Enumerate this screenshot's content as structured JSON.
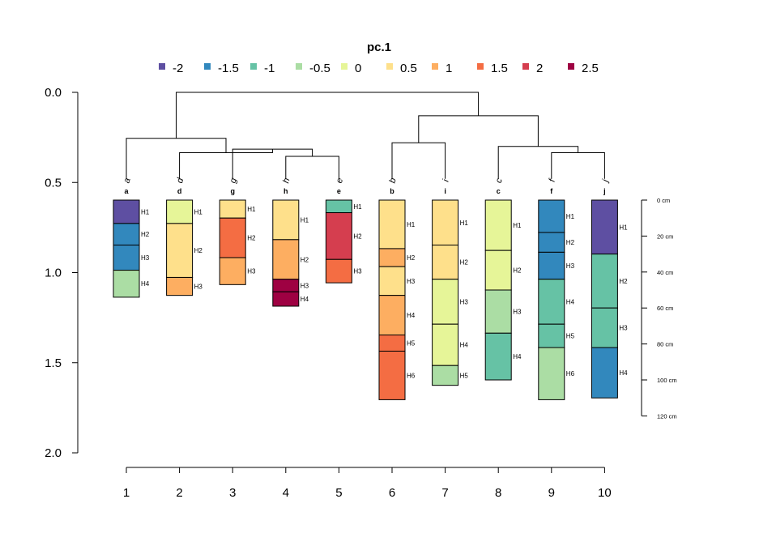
{
  "chart_data": {
    "type": "soil-profile-dendrogram",
    "legend": {
      "title": "pc.1",
      "entries": [
        {
          "label": "-2",
          "color": "#5e4fa2"
        },
        {
          "label": "-1.5",
          "color": "#3288bd"
        },
        {
          "label": "-1",
          "color": "#66c2a5"
        },
        {
          "label": "-0.5",
          "color": "#abdda4"
        },
        {
          "label": "0",
          "color": "#e6f598"
        },
        {
          "label": "0.5",
          "color": "#fee08b"
        },
        {
          "label": "1",
          "color": "#fdae61"
        },
        {
          "label": "1.5",
          "color": "#f46d43"
        },
        {
          "label": "2",
          "color": "#d53e4f"
        },
        {
          "label": "2.5",
          "color": "#9e0142"
        }
      ]
    },
    "y_axis": {
      "ticks": [
        "0.0",
        "0.5",
        "1.0",
        "1.5",
        "2.0"
      ],
      "values": [
        0,
        0.5,
        1.0,
        1.5,
        2.0
      ],
      "range": [
        0,
        2.0
      ]
    },
    "x_axis": {
      "ticks": [
        "1",
        "2",
        "3",
        "4",
        "5",
        "6",
        "7",
        "8",
        "9",
        "10"
      ]
    },
    "depth_scale": {
      "labels": [
        "0 cm",
        "20 cm",
        "40 cm",
        "60 cm",
        "80 cm",
        "100 cm",
        "120 cm"
      ],
      "values": [
        0,
        20,
        40,
        60,
        80,
        100,
        120
      ]
    },
    "dendrogram": {
      "leaf_order": [
        "a",
        "d",
        "g",
        "h",
        "e",
        "b",
        "i",
        "c",
        "f",
        "j"
      ],
      "merges": [
        {
          "left": 4,
          "right": 5,
          "height": 0.355
        },
        {
          "left": 3,
          "right": 11,
          "height": 0.315
        },
        {
          "left": 2,
          "right": 12,
          "height": 0.335
        },
        {
          "left": 1,
          "right": 13,
          "height": 0.255
        },
        {
          "left": 6,
          "right": 7,
          "height": 0.28
        },
        {
          "left": 9,
          "right": 10,
          "height": 0.335
        },
        {
          "left": 8,
          "right": 16,
          "height": 0.3
        },
        {
          "left": 15,
          "right": 17,
          "height": 0.13
        },
        {
          "left": 14,
          "right": 18,
          "height": 0.0
        }
      ]
    },
    "profiles": [
      {
        "id": "a",
        "horizons": [
          {
            "name": "H1",
            "top": 0,
            "bottom": 13,
            "value": -2
          },
          {
            "name": "H2",
            "top": 13,
            "bottom": 25,
            "value": -1.5
          },
          {
            "name": "H3",
            "top": 25,
            "bottom": 39,
            "value": -1.5
          },
          {
            "name": "H4",
            "top": 39,
            "bottom": 54,
            "value": -0.5
          }
        ]
      },
      {
        "id": "d",
        "horizons": [
          {
            "name": "H1",
            "top": 0,
            "bottom": 13,
            "value": 0
          },
          {
            "name": "H2",
            "top": 13,
            "bottom": 43,
            "value": 0.5
          },
          {
            "name": "H3",
            "top": 43,
            "bottom": 53,
            "value": 1
          }
        ]
      },
      {
        "id": "g",
        "horizons": [
          {
            "name": "H1",
            "top": 0,
            "bottom": 10,
            "value": 0.5
          },
          {
            "name": "H2",
            "top": 10,
            "bottom": 32,
            "value": 1.5
          },
          {
            "name": "H3",
            "top": 32,
            "bottom": 47,
            "value": 1
          }
        ]
      },
      {
        "id": "h",
        "horizons": [
          {
            "name": "H1",
            "top": 0,
            "bottom": 22,
            "value": 0.5
          },
          {
            "name": "H2",
            "top": 22,
            "bottom": 44,
            "value": 1
          },
          {
            "name": "H3",
            "top": 44,
            "bottom": 51,
            "value": 2.5
          },
          {
            "name": "H4",
            "top": 51,
            "bottom": 59,
            "value": 2.5
          }
        ]
      },
      {
        "id": "e",
        "horizons": [
          {
            "name": "H1",
            "top": 0,
            "bottom": 7,
            "value": -1
          },
          {
            "name": "H2",
            "top": 7,
            "bottom": 33,
            "value": 2
          },
          {
            "name": "H3",
            "top": 33,
            "bottom": 46,
            "value": 1.5
          }
        ]
      },
      {
        "id": "b",
        "horizons": [
          {
            "name": "H1",
            "top": 0,
            "bottom": 27,
            "value": 0.5
          },
          {
            "name": "H2",
            "top": 27,
            "bottom": 37,
            "value": 1
          },
          {
            "name": "H3",
            "top": 37,
            "bottom": 53,
            "value": 0.5
          },
          {
            "name": "H4",
            "top": 53,
            "bottom": 75,
            "value": 1
          },
          {
            "name": "H5",
            "top": 75,
            "bottom": 84,
            "value": 1.5
          },
          {
            "name": "H6",
            "top": 84,
            "bottom": 111,
            "value": 1.5
          }
        ]
      },
      {
        "id": "i",
        "horizons": [
          {
            "name": "H1",
            "top": 0,
            "bottom": 25,
            "value": 0.5
          },
          {
            "name": "H2",
            "top": 25,
            "bottom": 44,
            "value": 0.5
          },
          {
            "name": "H3",
            "top": 44,
            "bottom": 69,
            "value": 0
          },
          {
            "name": "H4",
            "top": 69,
            "bottom": 92,
            "value": 0
          },
          {
            "name": "H5",
            "top": 92,
            "bottom": 103,
            "value": -0.5
          }
        ]
      },
      {
        "id": "c",
        "horizons": [
          {
            "name": "H1",
            "top": 0,
            "bottom": 28,
            "value": 0
          },
          {
            "name": "H2",
            "top": 28,
            "bottom": 50,
            "value": 0
          },
          {
            "name": "H3",
            "top": 50,
            "bottom": 74,
            "value": -0.5
          },
          {
            "name": "H4",
            "top": 74,
            "bottom": 100,
            "value": -1
          }
        ]
      },
      {
        "id": "f",
        "horizons": [
          {
            "name": "H1",
            "top": 0,
            "bottom": 18,
            "value": -1.5
          },
          {
            "name": "H2",
            "top": 18,
            "bottom": 29,
            "value": -1.5
          },
          {
            "name": "H3",
            "top": 29,
            "bottom": 44,
            "value": -1.5
          },
          {
            "name": "H4",
            "top": 44,
            "bottom": 69,
            "value": -1
          },
          {
            "name": "H5",
            "top": 69,
            "bottom": 82,
            "value": -1
          },
          {
            "name": "H6",
            "top": 82,
            "bottom": 111,
            "value": -0.5
          }
        ]
      },
      {
        "id": "j",
        "horizons": [
          {
            "name": "H1",
            "top": 0,
            "bottom": 30,
            "value": -2
          },
          {
            "name": "H2",
            "top": 30,
            "bottom": 60,
            "value": -1
          },
          {
            "name": "H3",
            "top": 60,
            "bottom": 82,
            "value": -1
          },
          {
            "name": "H4",
            "top": 82,
            "bottom": 110,
            "value": -1.5
          }
        ]
      }
    ]
  }
}
